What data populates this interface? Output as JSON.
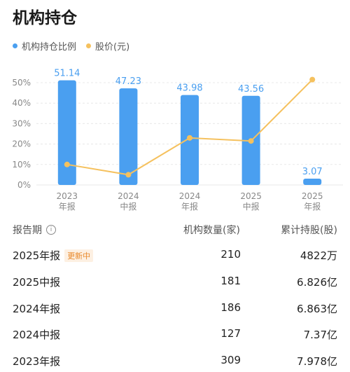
{
  "title": "机构持仓",
  "legend": [
    {
      "label": "机构持仓比例",
      "color": "#4a9ff0"
    },
    {
      "label": "股价(元)",
      "color": "#f5c15e"
    }
  ],
  "chart_data": {
    "type": "bar",
    "categories": [
      [
        "2023",
        "年报"
      ],
      [
        "2024",
        "中报"
      ],
      [
        "2024",
        "年报"
      ],
      [
        "2025",
        "中报"
      ],
      [
        "2025",
        "年报"
      ]
    ],
    "series": [
      {
        "name": "机构持仓比例",
        "values": [
          51.14,
          47.23,
          43.98,
          43.56,
          3.07
        ],
        "color": "#4a9ff0"
      },
      {
        "name": "股价(元)",
        "type": "line",
        "values": [
          10,
          5,
          23,
          21.5,
          51.5
        ],
        "color": "#f5c15e"
      }
    ],
    "y_ticks": [
      "50%",
      "40%",
      "30%",
      "20%",
      "10%",
      "0%"
    ],
    "ylim": [
      0,
      50
    ],
    "grid": true
  },
  "table": {
    "headers": {
      "period": "报告期",
      "count": "机构数量(家)",
      "shares": "累计持股(股)"
    },
    "rows": [
      {
        "period": "2025年报",
        "badge": "更新中",
        "count": "210",
        "shares": "4822万"
      },
      {
        "period": "2025中报",
        "count": "181",
        "shares": "6.826亿"
      },
      {
        "period": "2024年报",
        "count": "186",
        "shares": "6.863亿"
      },
      {
        "period": "2024中报",
        "count": "127",
        "shares": "7.37亿"
      },
      {
        "period": "2023年报",
        "count": "309",
        "shares": "7.978亿"
      }
    ]
  }
}
